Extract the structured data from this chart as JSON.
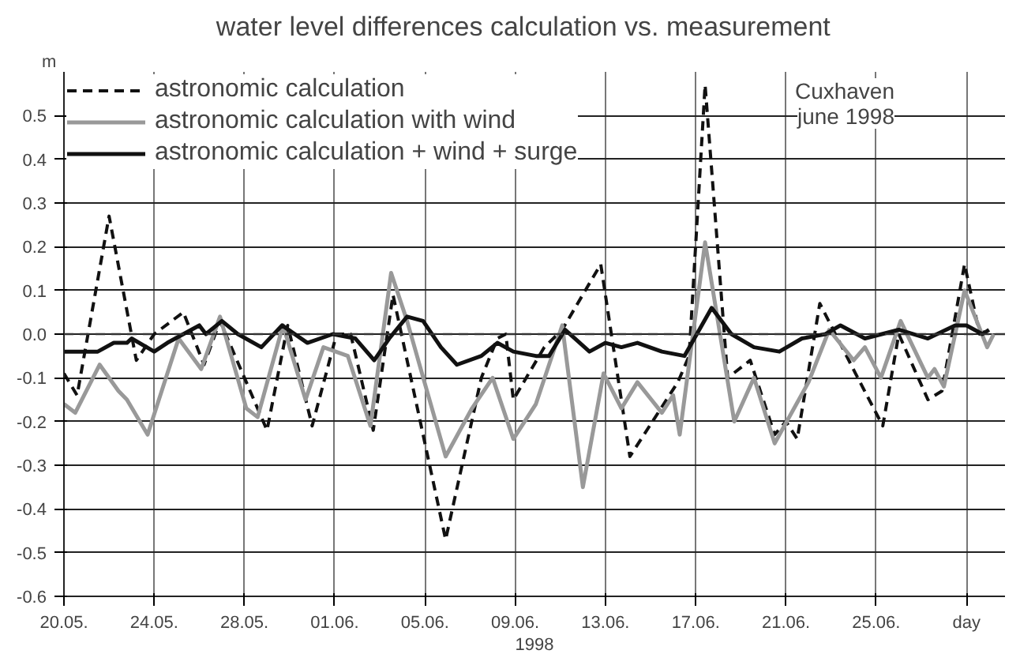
{
  "chart_data": {
    "type": "line",
    "title": "water level  differences  calculation  vs. measurement",
    "xlabel": "1998",
    "ylabel": "m",
    "annotations": [
      "Cuxhaven",
      "june 1998"
    ],
    "xlim": [
      "1998-05-20",
      "1998-06-30T17:00"
    ],
    "ylim": [
      -0.6,
      0.6
    ],
    "xticks": [
      {
        "value": "1998-05-20",
        "label": "20.05."
      },
      {
        "value": "1998-05-24",
        "label": "24.05."
      },
      {
        "value": "1998-05-28",
        "label": "28.05."
      },
      {
        "value": "1998-06-01",
        "label": "01.06."
      },
      {
        "value": "1998-06-05",
        "label": "05.06."
      },
      {
        "value": "1998-06-09",
        "label": "09.06."
      },
      {
        "value": "1998-06-13",
        "label": "13.06."
      },
      {
        "value": "1998-06-17",
        "label": "17.06."
      },
      {
        "value": "1998-06-21",
        "label": "21.06."
      },
      {
        "value": "1998-06-25",
        "label": "25.06."
      },
      {
        "value": "1998-06-29",
        "label": "day"
      }
    ],
    "yticks": [
      {
        "value": -0.6,
        "label": "-0.6"
      },
      {
        "value": -0.5,
        "label": "-0.5"
      },
      {
        "value": -0.4,
        "label": "-0.4"
      },
      {
        "value": -0.3,
        "label": "-0.3"
      },
      {
        "value": -0.2,
        "label": "-0.2"
      },
      {
        "value": -0.1,
        "label": "-0.1"
      },
      {
        "value": 0,
        "label": "0.0"
      },
      {
        "value": 0.1,
        "label": "0.1"
      },
      {
        "value": 0.2,
        "label": "0.2"
      },
      {
        "value": 0.3,
        "label": "0.3"
      },
      {
        "value": 0.4,
        "label": "0.4"
      },
      {
        "value": 0.5,
        "label": "0.5"
      }
    ],
    "grid": true,
    "legend": "top left",
    "ref_lines": [
      {
        "axis": "y",
        "value": 0,
        "line_style": "dashed",
        "color": "#333333"
      }
    ],
    "series": [
      {
        "name": "astronomic calculation",
        "color": "#111111",
        "line_style": "dashed",
        "x": [
          "1998-05-20T00:00",
          "1998-05-20T14:00",
          "1998-05-22T00:00",
          "1998-05-23T05:00",
          "1998-05-24T00:00",
          "1998-05-25T07:00",
          "1998-05-26T05:00",
          "1998-05-26T22:00",
          "1998-05-29T00:00",
          "1998-05-29T22:00",
          "1998-05-31T00:00",
          "1998-06-01T02:00",
          "1998-06-01T17:00",
          "1998-06-02T17:00",
          "1998-06-03T14:00",
          "1998-06-05T22:00",
          "1998-06-07T12:00",
          "1998-06-08T05:00",
          "1998-06-08T14:00",
          "1998-06-08T22:00",
          "1998-06-10T07:00",
          "1998-06-11T02:00",
          "1998-06-12T19:00",
          "1998-06-14T02:00",
          "1998-06-16T05:00",
          "1998-06-16T17:00",
          "1998-06-17T10:00",
          "1998-06-18T10:00",
          "1998-06-19T10:00",
          "1998-06-20T12:00",
          "1998-06-21T00:00",
          "1998-06-21T12:00",
          "1998-06-22T12:00",
          "1998-06-24T02:00",
          "1998-06-25T07:00",
          "1998-06-26T00:00",
          "1998-06-27T07:00",
          "1998-06-27T22:00",
          "1998-06-28T22:00",
          "1998-06-29T14:00",
          "1998-06-30T00:00"
        ],
        "values": [
          -0.09,
          -0.14,
          0.27,
          -0.06,
          0.0,
          0.05,
          -0.07,
          0.03,
          -0.22,
          0.02,
          -0.21,
          0.0,
          0.0,
          -0.22,
          0.09,
          -0.47,
          -0.1,
          -0.01,
          0.0,
          -0.15,
          -0.03,
          0.01,
          0.16,
          -0.28,
          -0.11,
          -0.05,
          0.57,
          -0.1,
          -0.06,
          -0.23,
          -0.2,
          -0.24,
          0.07,
          -0.09,
          -0.21,
          0.0,
          -0.15,
          -0.13,
          0.16,
          0.0,
          0.01
        ]
      },
      {
        "name": "astronomic calculation with wind",
        "color": "#999999",
        "line_style": "solid",
        "x": [
          "1998-05-20T00:00",
          "1998-05-20T12:00",
          "1998-05-21T14:00",
          "1998-05-22T10:00",
          "1998-05-22T19:00",
          "1998-05-23T17:00",
          "1998-05-25T02:00",
          "1998-05-26T02:00",
          "1998-05-26T22:00",
          "1998-05-28T02:00",
          "1998-05-28T14:00",
          "1998-05-29T17:00",
          "1998-05-30T17:00",
          "1998-05-31T12:00",
          "1998-06-01T14:00",
          "1998-06-02T14:00",
          "1998-06-03T12:00",
          "1998-06-04T05:00",
          "1998-06-05T22:00",
          "1998-06-07T02:00",
          "1998-06-08T00:00",
          "1998-06-08T22:00",
          "1998-06-09T22:00",
          "1998-06-11T02:00",
          "1998-06-12T00:00",
          "1998-06-12T22:00",
          "1998-06-13T17:00",
          "1998-06-14T10:00",
          "1998-06-15T12:00",
          "1998-06-16T00:00",
          "1998-06-16T07:00",
          "1998-06-17T10:00",
          "1998-06-18T17:00",
          "1998-06-19T14:00",
          "1998-06-20T12:00",
          "1998-06-22T00:00",
          "1998-06-22T22:00",
          "1998-06-24T00:00",
          "1998-06-24T12:00",
          "1998-06-25T05:00",
          "1998-06-26T02:00",
          "1998-06-27T07:00",
          "1998-06-27T14:00",
          "1998-06-28T00:00",
          "1998-06-28T22:00",
          "1998-06-29T22:00",
          "1998-06-30T05:00"
        ],
        "values": [
          -0.16,
          -0.18,
          -0.07,
          -0.13,
          -0.15,
          -0.23,
          -0.01,
          -0.08,
          0.04,
          -0.17,
          -0.19,
          0.02,
          -0.15,
          -0.03,
          -0.05,
          -0.21,
          0.14,
          0.03,
          -0.28,
          -0.17,
          -0.1,
          -0.24,
          -0.16,
          0.02,
          -0.35,
          -0.09,
          -0.17,
          -0.11,
          -0.18,
          -0.14,
          -0.23,
          0.21,
          -0.2,
          -0.1,
          -0.25,
          -0.11,
          0.01,
          -0.06,
          -0.03,
          -0.1,
          0.03,
          -0.1,
          -0.08,
          -0.12,
          0.1,
          -0.03,
          0.0
        ]
      },
      {
        "name": "astronomic calculation + wind + surge",
        "color": "#111111",
        "line_style": "solid",
        "x": [
          "1998-05-20T00:00",
          "1998-05-21T12:00",
          "1998-05-22T05:00",
          "1998-05-22T19:00",
          "1998-05-23T00:00",
          "1998-05-24T00:00",
          "1998-05-24T14:00",
          "1998-05-25T07:00",
          "1998-05-26T00:00",
          "1998-05-26T07:00",
          "1998-05-27T00:00",
          "1998-05-27T17:00",
          "1998-05-28T18:00",
          "1998-05-29T16:00",
          "1998-05-30T19:00",
          "1998-05-31T22:00",
          "1998-06-01T22:00",
          "1998-06-02T18:00",
          "1998-06-03T10:00",
          "1998-06-04T05:00",
          "1998-06-04T22:00",
          "1998-06-05T17:00",
          "1998-06-06T10:00",
          "1998-06-07T12:00",
          "1998-06-08T05:00",
          "1998-06-08T22:00",
          "1998-06-09T22:00",
          "1998-06-10T12:00",
          "1998-06-11T05:00",
          "1998-06-12T07:00",
          "1998-06-13T00:00",
          "1998-06-13T17:00",
          "1998-06-14T10:00",
          "1998-06-15T12:00",
          "1998-06-16T12:00",
          "1998-06-17T17:00",
          "1998-06-18T14:00",
          "1998-06-19T14:00",
          "1998-06-20T17:00",
          "1998-06-21T17:00",
          "1998-06-22T18:00",
          "1998-06-23T10:00",
          "1998-06-24T12:00",
          "1998-06-26T00:00",
          "1998-06-27T07:00",
          "1998-06-28T12:00",
          "1998-06-29T00:00",
          "1998-06-29T17:00",
          "1998-06-30T00:00"
        ],
        "values": [
          -0.04,
          -0.04,
          -0.02,
          -0.02,
          -0.01,
          -0.04,
          -0.02,
          0.0,
          0.02,
          0.0,
          0.03,
          0.0,
          -0.03,
          0.02,
          -0.02,
          0.0,
          -0.01,
          -0.06,
          -0.01,
          0.04,
          0.03,
          -0.03,
          -0.07,
          -0.05,
          -0.02,
          -0.04,
          -0.05,
          -0.05,
          0.01,
          -0.04,
          -0.02,
          -0.03,
          -0.02,
          -0.04,
          -0.05,
          0.06,
          0.0,
          -0.03,
          -0.04,
          -0.01,
          0.0,
          0.02,
          -0.01,
          0.01,
          -0.01,
          0.02,
          0.02,
          0.0,
          0.01
        ]
      }
    ]
  }
}
